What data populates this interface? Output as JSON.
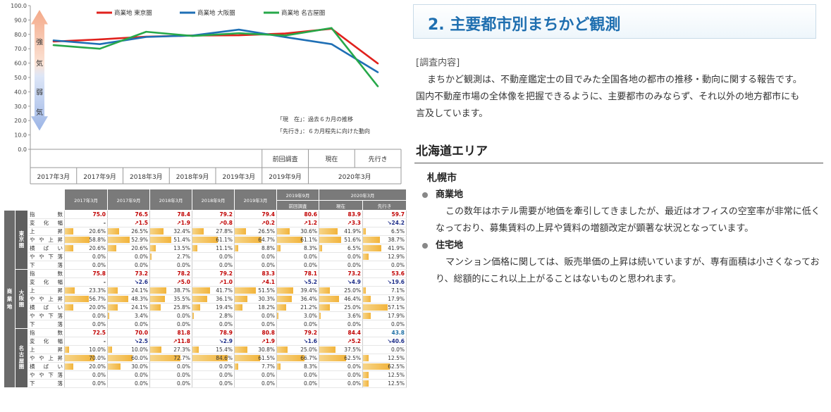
{
  "chart_data": {
    "type": "line",
    "x": [
      "2017年3月",
      "2017年9月",
      "2018年3月",
      "2018年9月",
      "2019年3月",
      "2019年9月",
      "現在",
      "先行き"
    ],
    "x_top_labels": [
      "",
      "",
      "",
      "",
      "",
      "前回調査",
      "現在",
      "先行き"
    ],
    "x_bottom_labels": [
      "2017年3月",
      "2017年9月",
      "2018年3月",
      "2018年9月",
      "2019年3月",
      "2019年9月",
      "2020年3月"
    ],
    "ylim": [
      0,
      100
    ],
    "yticks": [
      "0.0",
      "10.0",
      "20.0",
      "30.0",
      "40.0",
      "50.0",
      "60.0",
      "70.0",
      "80.0",
      "90.0",
      "100.0"
    ],
    "series": [
      {
        "name": "商業地 東京圏",
        "color": "#e0211d",
        "values": [
          75.0,
          76.5,
          78.4,
          79.2,
          79.4,
          80.6,
          83.9,
          59.7
        ]
      },
      {
        "name": "商業地 大阪圏",
        "color": "#1f6fb5",
        "values": [
          75.8,
          73.2,
          78.2,
          79.2,
          83.3,
          78.1,
          73.2,
          53.6
        ]
      },
      {
        "name": "商業地 名古屋圏",
        "color": "#27a84a",
        "values": [
          72.5,
          70.0,
          81.8,
          78.9,
          80.8,
          79.2,
          84.4,
          43.8
        ]
      }
    ],
    "strength_labels": [
      "強",
      "気",
      "弱",
      "気"
    ],
    "note_lines": [
      "「現　在」：過去６カ月の推移",
      "「先行き」：６カ月程先に向けた動向"
    ]
  },
  "table": {
    "header_cols": [
      "2017年3月",
      "2017年9月",
      "2018年3月",
      "2018年9月",
      "2019年3月",
      "2019年9月",
      "2020年3月"
    ],
    "header_sub": [
      "前回調査",
      "現在",
      "先行き"
    ],
    "group_label": "商業地",
    "row_labels": [
      "指　　　数",
      "変　化　幅",
      "上　　　昇",
      "や や 上 昇",
      "横　ば　い",
      "や や 下 落",
      "下　　　落"
    ],
    "regions": [
      {
        "name": "東京圏",
        "index": [
          "75.0",
          "76.5",
          "78.4",
          "79.2",
          "79.4",
          "80.6",
          "83.9",
          "59.7"
        ],
        "change": [
          {
            "t": "-",
            "d": ""
          },
          {
            "t": "↗1.5",
            "d": "up"
          },
          {
            "t": "↗1.9",
            "d": "up"
          },
          {
            "t": "↗0.8",
            "d": "up"
          },
          {
            "t": "↗0.2",
            "d": "up"
          },
          {
            "t": "↗1.2",
            "d": "up"
          },
          {
            "t": "↗3.3",
            "d": "up"
          },
          {
            "t": "↘24.2",
            "d": "dn"
          }
        ],
        "dist": [
          [
            20.6,
            26.5,
            32.4,
            27.8,
            26.5,
            30.6,
            41.9,
            6.5
          ],
          [
            58.8,
            52.9,
            51.4,
            61.1,
            64.7,
            61.1,
            51.6,
            38.7
          ],
          [
            20.6,
            20.6,
            13.5,
            11.1,
            8.8,
            8.3,
            6.5,
            41.9
          ],
          [
            0.0,
            0.0,
            2.7,
            0.0,
            0.0,
            0.0,
            0.0,
            12.9
          ],
          [
            0.0,
            0.0,
            0.0,
            0.0,
            0.0,
            0.0,
            0.0,
            0.0
          ]
        ]
      },
      {
        "name": "大阪圏",
        "index": [
          "75.8",
          "73.2",
          "78.2",
          "79.2",
          "83.3",
          "78.1",
          "73.2",
          "53.6"
        ],
        "change": [
          {
            "t": "-",
            "d": ""
          },
          {
            "t": "↘2.6",
            "d": "dn"
          },
          {
            "t": "↗5.0",
            "d": "up"
          },
          {
            "t": "↗1.0",
            "d": "up"
          },
          {
            "t": "↗4.1",
            "d": "up"
          },
          {
            "t": "↘5.2",
            "d": "dn"
          },
          {
            "t": "↘4.9",
            "d": "dn"
          },
          {
            "t": "↘19.6",
            "d": "dn"
          }
        ],
        "dist": [
          [
            23.3,
            24.1,
            38.7,
            41.7,
            51.5,
            39.4,
            25.0,
            7.1
          ],
          [
            56.7,
            48.3,
            35.5,
            36.1,
            30.3,
            36.4,
            46.4,
            17.9
          ],
          [
            20.0,
            24.1,
            25.8,
            19.4,
            18.2,
            21.2,
            25.0,
            57.1
          ],
          [
            0.0,
            3.4,
            0.0,
            2.8,
            0.0,
            3.0,
            3.6,
            17.9
          ],
          [
            0.0,
            0.0,
            0.0,
            0.0,
            0.0,
            0.0,
            0.0,
            0.0
          ]
        ]
      },
      {
        "name": "名古屋圏",
        "index": [
          "72.5",
          "70.0",
          "81.8",
          "78.9",
          "80.8",
          "79.2",
          "84.4",
          "43.8"
        ],
        "change": [
          {
            "t": "-",
            "d": ""
          },
          {
            "t": "↘2.5",
            "d": "dn"
          },
          {
            "t": "↗11.8",
            "d": "up"
          },
          {
            "t": "↘2.9",
            "d": "dn"
          },
          {
            "t": "↗1.9",
            "d": "up"
          },
          {
            "t": "↘1.6",
            "d": "dn"
          },
          {
            "t": "↗5.2",
            "d": "up"
          },
          {
            "t": "↘40.6",
            "d": "dn"
          }
        ],
        "dist": [
          [
            10.0,
            10.0,
            27.3,
            15.4,
            30.8,
            25.0,
            37.5,
            0.0
          ],
          [
            70.0,
            60.0,
            72.7,
            84.6,
            61.5,
            66.7,
            62.5,
            12.5
          ],
          [
            20.0,
            30.0,
            0.0,
            0.0,
            7.7,
            8.3,
            0.0,
            62.5
          ],
          [
            0.0,
            0.0,
            0.0,
            0.0,
            0.0,
            0.0,
            0.0,
            12.5
          ],
          [
            0.0,
            0.0,
            0.0,
            0.0,
            0.0,
            0.0,
            0.0,
            12.5
          ]
        ]
      }
    ]
  },
  "article": {
    "title": "2. 主要都市別まちかど観測",
    "survey_label": "[調査内容]",
    "survey_lines": [
      "まちかど観測は、不動産鑑定士の目でみた全国各地の都市の推移・動向に関する報告です。",
      "国内不動産市場の全体像を把握できるように、主要都市のみならず、それ以外の地方都市にも",
      "言及しています。"
    ],
    "area_heading": "北海道エリア",
    "city": "札幌市",
    "commercial_label": "商業地",
    "commercial_lines": [
      "この数年はホテル需要が地価を牽引してきましたが、最近はオフィスの空室率が非常に低く",
      "なっており、募集賃料の上昇や賃料の増額改定が顕著な状況となっています。"
    ],
    "residential_label": "住宅地",
    "residential_lines": [
      "マンション価格に関しては、販売単価の上昇は続いていますが、専有面積は小さくなってお",
      "り、総額的にこれ以上上がることはないものと思われます。"
    ],
    "colors": {
      "title": "#1f6fb0",
      "heading_rule": "#555555",
      "bullet": "#888888"
    }
  }
}
